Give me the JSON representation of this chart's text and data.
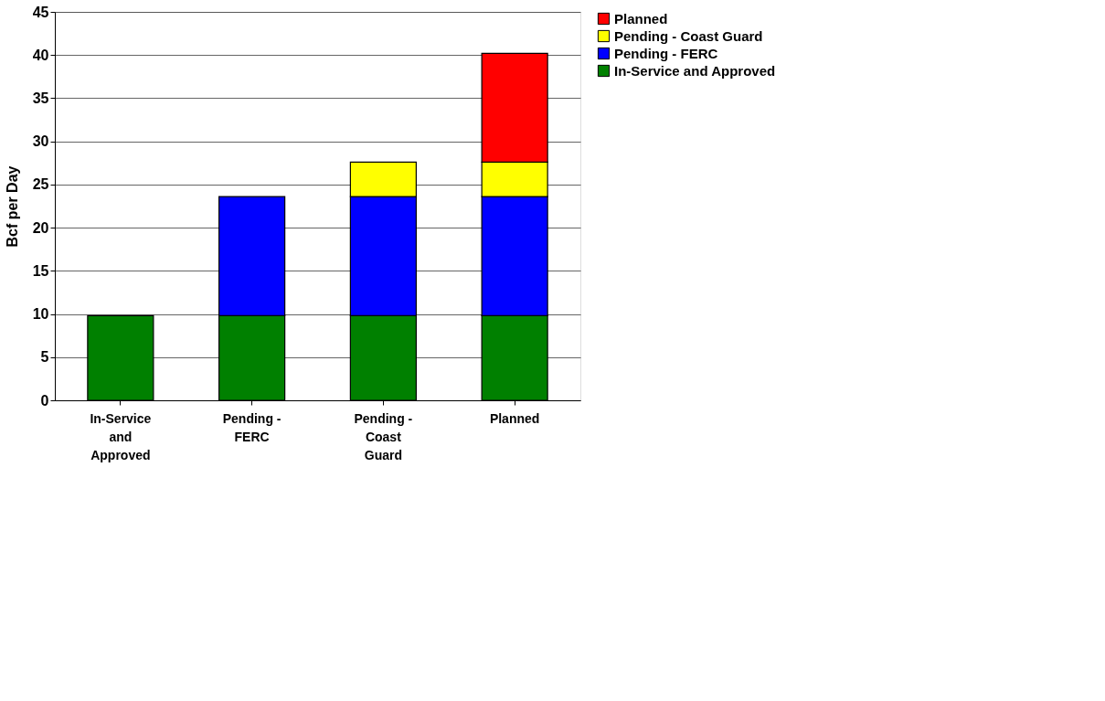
{
  "chart_data": {
    "type": "bar",
    "stacked": true,
    "ylabel": "Bcf per Day",
    "categories": [
      "In-Service and Approved",
      "Pending - FERC",
      "Pending - Coast Guard",
      "Planned"
    ],
    "series": [
      {
        "name": "In-Service and Approved",
        "color": "#008000",
        "values": [
          9.8,
          9.8,
          9.8,
          9.8
        ]
      },
      {
        "name": "Pending - FERC",
        "color": "#0000ff",
        "values": [
          null,
          13.8,
          13.8,
          13.8
        ]
      },
      {
        "name": "Pending - Coast Guard",
        "color": "#ffff00",
        "values": [
          null,
          null,
          4.0,
          4.0
        ]
      },
      {
        "name": "Planned",
        "color": "#ff0000",
        "values": [
          null,
          null,
          null,
          12.6
        ]
      }
    ],
    "ylim": [
      0,
      45
    ],
    "yticks": [
      0,
      5,
      10,
      15,
      20,
      25,
      30,
      35,
      40,
      45
    ],
    "grid": "y",
    "legend": "right"
  }
}
